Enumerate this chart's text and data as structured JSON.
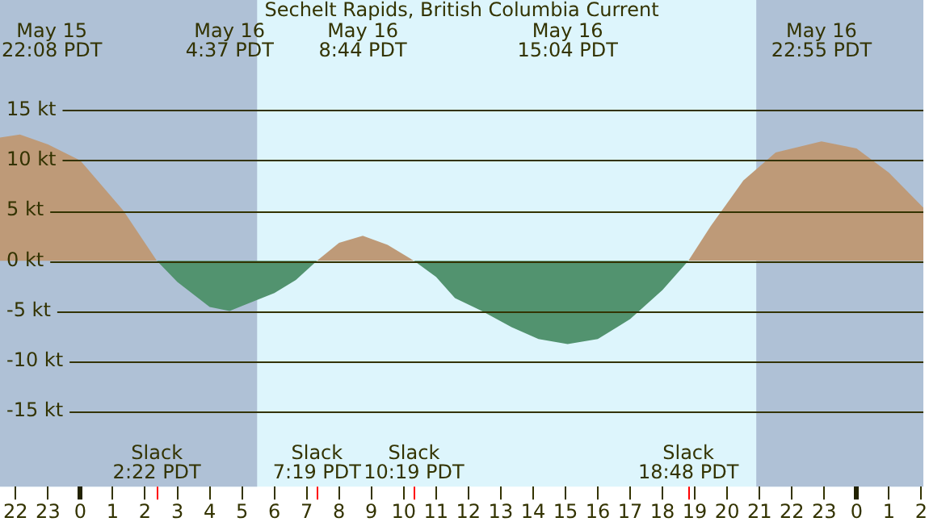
{
  "chart_data": {
    "type": "area",
    "title": "Sechelt Rapids, British Columbia Current",
    "xlim": [
      "--05-15T21:31",
      "--05-17T02:04"
    ],
    "ylim": [
      -22.5,
      26
    ],
    "xticks": [
      {
        "value": "--05-15T22:00",
        "label": "22"
      },
      {
        "value": "--05-15T23:00",
        "label": "23"
      },
      {
        "value": "--05-16T00:00",
        "label": "0"
      },
      {
        "value": "--05-16T01:00",
        "label": "1"
      },
      {
        "value": "--05-16T02:00",
        "label": "2"
      },
      {
        "value": "--05-16T03:00",
        "label": "3"
      },
      {
        "value": "--05-16T04:00",
        "label": "4"
      },
      {
        "value": "--05-16T05:00",
        "label": "5"
      },
      {
        "value": "--05-16T06:00",
        "label": "6"
      },
      {
        "value": "--05-16T07:00",
        "label": "7"
      },
      {
        "value": "--05-16T08:00",
        "label": "8"
      },
      {
        "value": "--05-16T09:00",
        "label": "9"
      },
      {
        "value": "--05-16T10:00",
        "label": "10"
      },
      {
        "value": "--05-16T11:00",
        "label": "11"
      },
      {
        "value": "--05-16T12:00",
        "label": "12"
      },
      {
        "value": "--05-16T13:00",
        "label": "13"
      },
      {
        "value": "--05-16T14:00",
        "label": "14"
      },
      {
        "value": "--05-16T15:00",
        "label": "15"
      },
      {
        "value": "--05-16T16:00",
        "label": "16"
      },
      {
        "value": "--05-16T17:00",
        "label": "17"
      },
      {
        "value": "--05-16T18:00",
        "label": "18"
      },
      {
        "value": "--05-16T19:00",
        "label": "19"
      },
      {
        "value": "--05-16T20:00",
        "label": "20"
      },
      {
        "value": "--05-16T21:00",
        "label": "21"
      },
      {
        "value": "--05-16T22:00",
        "label": "22"
      },
      {
        "value": "--05-16T23:00",
        "label": "23"
      },
      {
        "value": "--05-17T00:00",
        "label": "0"
      },
      {
        "value": "--05-17T01:00",
        "label": "1"
      },
      {
        "value": "--05-17T02:00",
        "label": "2"
      }
    ],
    "yticks": [
      {
        "value": -15,
        "label": "-15 kt"
      },
      {
        "value": -10,
        "label": "-10 kt"
      },
      {
        "value": -5,
        "label": "-5 kt"
      },
      {
        "value": 0,
        "label": "0 kt"
      },
      {
        "value": 5,
        "label": "5 kt"
      },
      {
        "value": 10,
        "label": "10 kt"
      },
      {
        "value": 15,
        "label": "15 kt"
      }
    ],
    "grid": "y",
    "legend": false,
    "series": [
      {
        "color": "#be9a78",
        "x": [
          "--05-15T21:31",
          "--05-15T22:08",
          "--05-15T23:00",
          "--05-16T00:00",
          "--05-16T01:20",
          "--05-16T02:22",
          "--05-16T02:23",
          "--05-16T07:19",
          "--05-16T08:00",
          "--05-16T08:44",
          "--05-16T09:30",
          "--05-16T10:19",
          "--05-16T10:20",
          "--05-16T18:48",
          "--05-16T19:30",
          "--05-16T20:30",
          "--05-16T21:30",
          "--05-16T22:55",
          "--05-17T00:00",
          "--05-17T01:00",
          "--05-17T02:04"
        ],
        "values": [
          12.3,
          12.6,
          11.6,
          10,
          5,
          0,
          null,
          0,
          1.8,
          2.5,
          1.6,
          0,
          null,
          0,
          3.5,
          8,
          10.8,
          11.9,
          11.2,
          8.8,
          5.3
        ]
      },
      {
        "color": "#52936f",
        "x": [
          "--05-16T02:22",
          "--05-16T03:00",
          "--05-16T04:00",
          "--05-16T04:37",
          "--05-16T05:00",
          "--05-16T06:00",
          "--05-16T06:40",
          "--05-16T07:19",
          "--05-16T07:20",
          "--05-16T10:19",
          "--05-16T11:00",
          "--05-16T11:35",
          "--05-16T12:25",
          "--05-16T13:20",
          "--05-16T14:10",
          "--05-16T15:04",
          "--05-16T16:00",
          "--05-16T17:00",
          "--05-16T18:00",
          "--05-16T18:48"
        ],
        "values": [
          0,
          -2.1,
          -4.6,
          -5,
          -4.5,
          -3.2,
          -1.9,
          0,
          null,
          0,
          -1.6,
          -3.7,
          -5,
          -6.6,
          -7.8,
          -8.3,
          -7.8,
          -5.8,
          -2.9,
          0
        ]
      }
    ],
    "bands": [
      {
        "axis": "x",
        "from": "--05-15T21:31",
        "to": "--05-16T05:28",
        "color": "#afc1d6"
      },
      {
        "axis": "x",
        "from": "--05-16T20:54",
        "to": "--05-17T02:04",
        "color": "#afc1d6"
      }
    ],
    "annotations": [
      "May 15\n22:08 PDT",
      "May 16\n4:37 PDT",
      "May 16\n8:44 PDT",
      "May 16\n15:04 PDT",
      "May 16\n22:55 PDT",
      "Slack\n2:22 PDT",
      "Slack\n7:19 PDT",
      "Slack\n10:19 PDT",
      "Slack\n18:48 PDT"
    ]
  }
}
